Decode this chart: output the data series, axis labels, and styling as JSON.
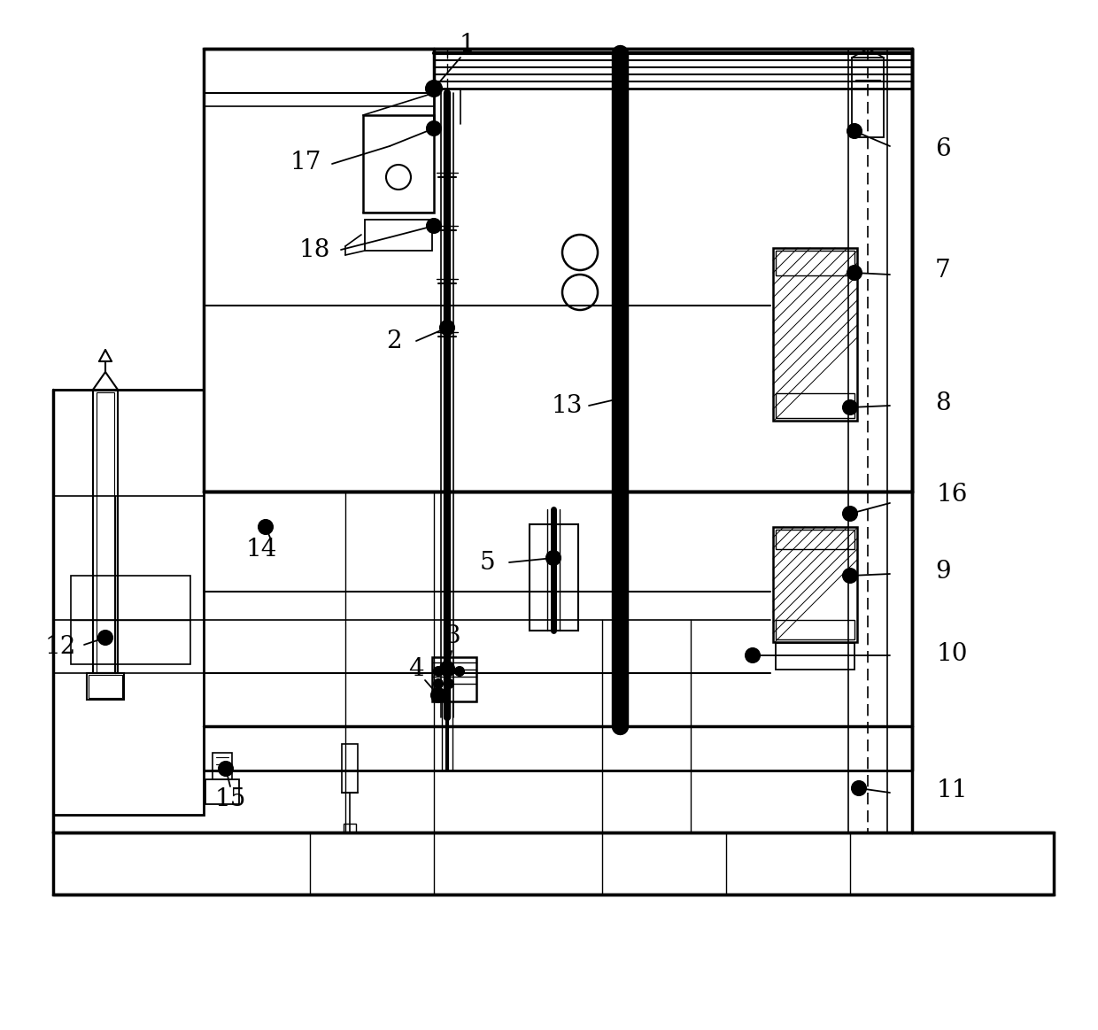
{
  "background_color": "#ffffff",
  "line_color": "#000000",
  "figsize": [
    12.4,
    11.63
  ],
  "dpi": 100
}
